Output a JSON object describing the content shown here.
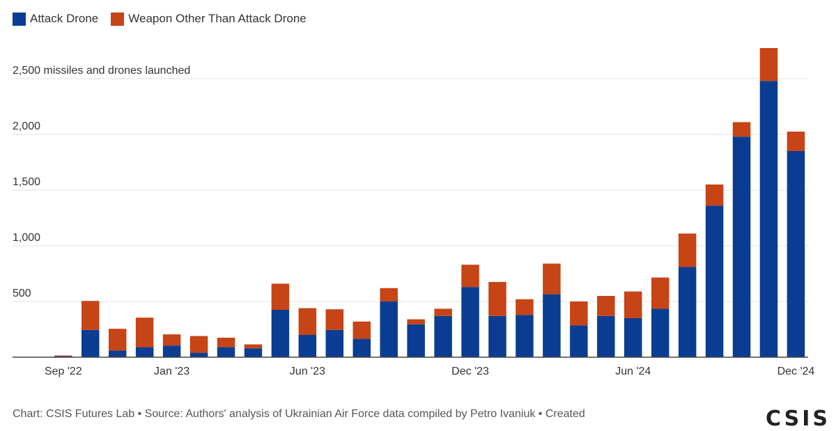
{
  "chart_data": {
    "type": "bar",
    "stacked": true,
    "categories": [
      "Sep '22",
      "Oct '22",
      "Nov '22",
      "Dec '22",
      "Jan '23",
      "Feb '23",
      "Mar '23",
      "Apr '23",
      "May '23",
      "Jun '23",
      "Jul '23",
      "Aug '23",
      "Sep '23",
      "Oct '23",
      "Nov '23",
      "Dec '23",
      "Jan '24",
      "Feb '24",
      "Mar '24",
      "Apr '24",
      "May '24",
      "Jun '24",
      "Jul '24",
      "Aug '24",
      "Sep '24",
      "Oct '24",
      "Nov '24",
      "Dec '24"
    ],
    "series": [
      {
        "name": "Attack Drone",
        "color": "#0a3d91",
        "values": [
          10,
          245,
          60,
          90,
          105,
          40,
          90,
          80,
          425,
          200,
          245,
          165,
          500,
          295,
          370,
          630,
          370,
          380,
          565,
          285,
          370,
          350,
          435,
          810,
          1360,
          1980,
          2480,
          1850
        ]
      },
      {
        "name": "Weapon Other Than Attack Drone",
        "color": "#c64416",
        "values": [
          5,
          260,
          195,
          265,
          100,
          150,
          85,
          35,
          235,
          240,
          185,
          155,
          120,
          45,
          65,
          200,
          305,
          140,
          275,
          215,
          180,
          240,
          280,
          300,
          190,
          130,
          295,
          175
        ]
      }
    ],
    "x_tick_labels": [
      "Sep '22",
      "Jan '23",
      "Jun '23",
      "Dec '23",
      "Jun '24",
      "Dec '24"
    ],
    "y_ticks": [
      "500",
      "1,000",
      "1,500",
      "2,000",
      "2,500 missiles and drones launched"
    ],
    "y_tick_values": [
      500,
      1000,
      1500,
      2000,
      2500
    ],
    "ylim": [
      0,
      2800
    ],
    "legend_position": "top-left",
    "grid": true
  },
  "footer": {
    "source_text": "Chart: CSIS Futures Lab • Source: Authors' analysis of Ukrainian Air Force data compiled by Petro Ivaniuk • Created",
    "logo_text": "CSIS"
  }
}
